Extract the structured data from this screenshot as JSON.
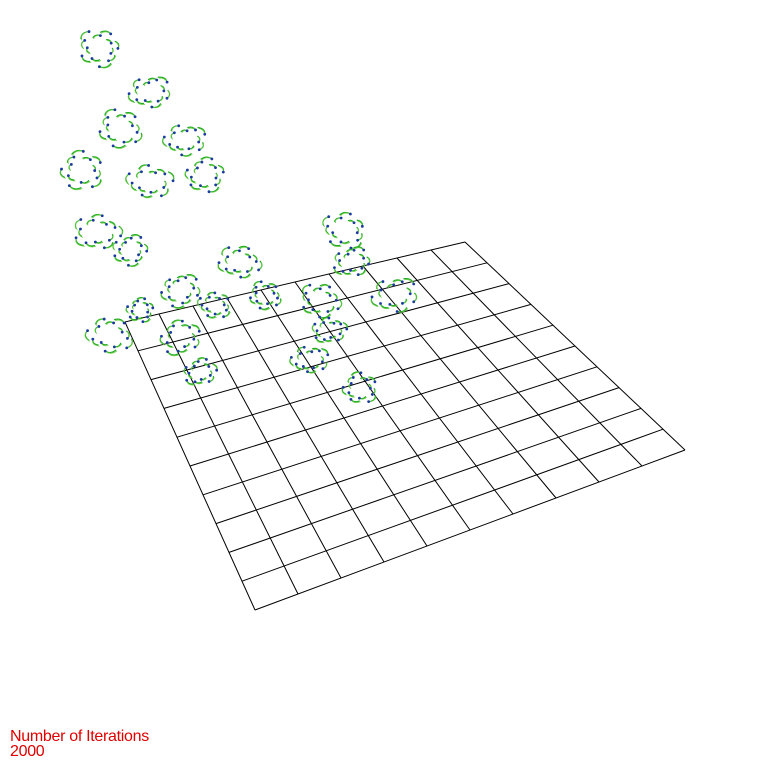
{
  "label": "Number of Iterations",
  "iterations": "2000"
}
